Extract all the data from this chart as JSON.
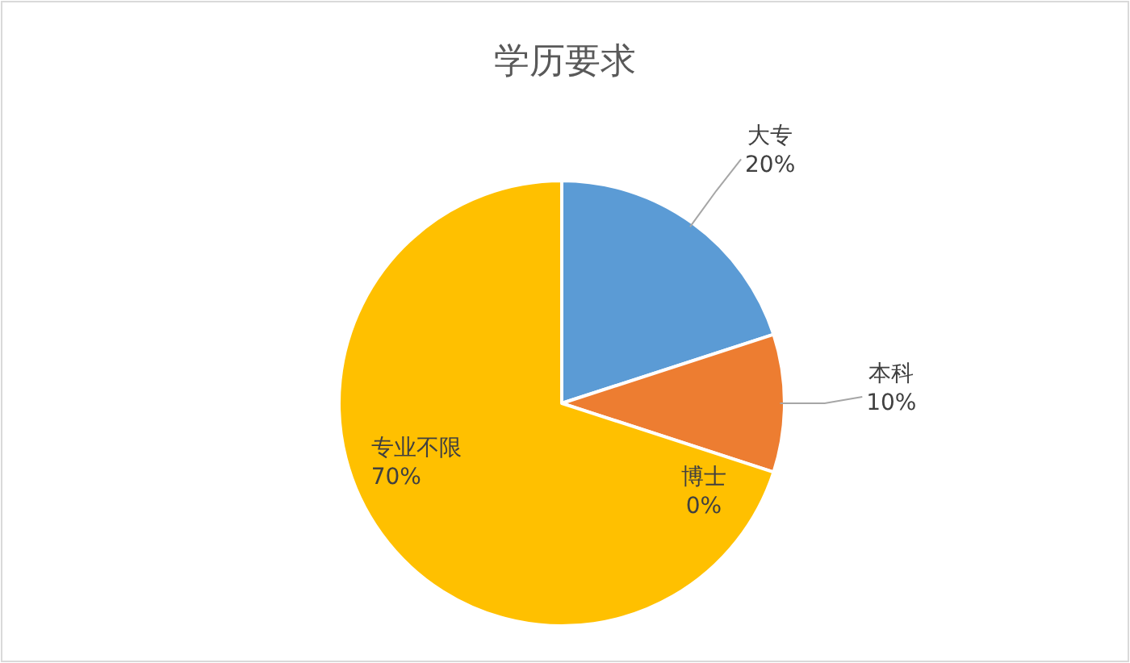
{
  "chart_data": {
    "type": "pie",
    "title": "学历要求",
    "categories": [
      "大专",
      "本科",
      "博士",
      "专业不限"
    ],
    "values": [
      20,
      10,
      0,
      70
    ],
    "value_labels": [
      "20%",
      "10%",
      "0%",
      "70%"
    ],
    "colors": [
      "#5b9bd5",
      "#ed7d31",
      "#a5a5a5",
      "#ffc000"
    ],
    "legend": false
  }
}
